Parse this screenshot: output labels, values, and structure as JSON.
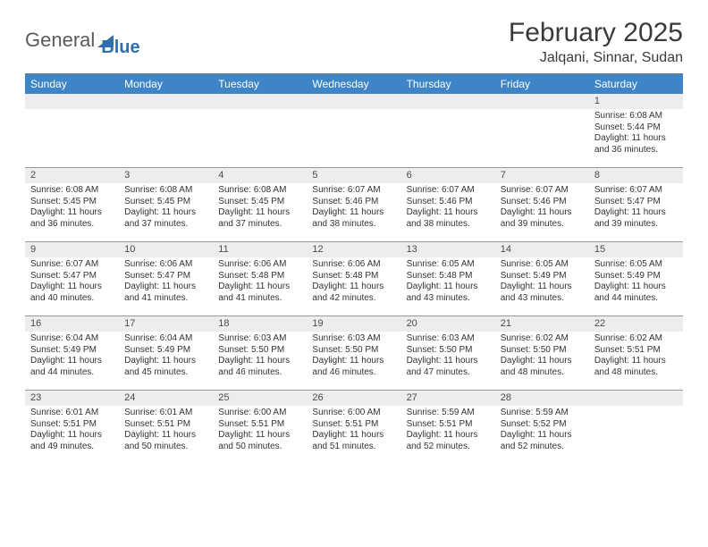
{
  "logo": {
    "word1": "General",
    "word2": "Blue"
  },
  "title": "February 2025",
  "subtitle": "Jalqani, Sinnar, Sudan",
  "header_bg": "#3d85c6",
  "weekdays": [
    "Sunday",
    "Monday",
    "Tuesday",
    "Wednesday",
    "Thursday",
    "Friday",
    "Saturday"
  ],
  "layout": {
    "first_weekday_index": 6,
    "days_in_month": 28,
    "weeks": 5
  },
  "days": {
    "1": {
      "sunrise": "6:08 AM",
      "sunset": "5:44 PM",
      "daylight": "11 hours and 36 minutes."
    },
    "2": {
      "sunrise": "6:08 AM",
      "sunset": "5:45 PM",
      "daylight": "11 hours and 36 minutes."
    },
    "3": {
      "sunrise": "6:08 AM",
      "sunset": "5:45 PM",
      "daylight": "11 hours and 37 minutes."
    },
    "4": {
      "sunrise": "6:08 AM",
      "sunset": "5:45 PM",
      "daylight": "11 hours and 37 minutes."
    },
    "5": {
      "sunrise": "6:07 AM",
      "sunset": "5:46 PM",
      "daylight": "11 hours and 38 minutes."
    },
    "6": {
      "sunrise": "6:07 AM",
      "sunset": "5:46 PM",
      "daylight": "11 hours and 38 minutes."
    },
    "7": {
      "sunrise": "6:07 AM",
      "sunset": "5:46 PM",
      "daylight": "11 hours and 39 minutes."
    },
    "8": {
      "sunrise": "6:07 AM",
      "sunset": "5:47 PM",
      "daylight": "11 hours and 39 minutes."
    },
    "9": {
      "sunrise": "6:07 AM",
      "sunset": "5:47 PM",
      "daylight": "11 hours and 40 minutes."
    },
    "10": {
      "sunrise": "6:06 AM",
      "sunset": "5:47 PM",
      "daylight": "11 hours and 41 minutes."
    },
    "11": {
      "sunrise": "6:06 AM",
      "sunset": "5:48 PM",
      "daylight": "11 hours and 41 minutes."
    },
    "12": {
      "sunrise": "6:06 AM",
      "sunset": "5:48 PM",
      "daylight": "11 hours and 42 minutes."
    },
    "13": {
      "sunrise": "6:05 AM",
      "sunset": "5:48 PM",
      "daylight": "11 hours and 43 minutes."
    },
    "14": {
      "sunrise": "6:05 AM",
      "sunset": "5:49 PM",
      "daylight": "11 hours and 43 minutes."
    },
    "15": {
      "sunrise": "6:05 AM",
      "sunset": "5:49 PM",
      "daylight": "11 hours and 44 minutes."
    },
    "16": {
      "sunrise": "6:04 AM",
      "sunset": "5:49 PM",
      "daylight": "11 hours and 44 minutes."
    },
    "17": {
      "sunrise": "6:04 AM",
      "sunset": "5:49 PM",
      "daylight": "11 hours and 45 minutes."
    },
    "18": {
      "sunrise": "6:03 AM",
      "sunset": "5:50 PM",
      "daylight": "11 hours and 46 minutes."
    },
    "19": {
      "sunrise": "6:03 AM",
      "sunset": "5:50 PM",
      "daylight": "11 hours and 46 minutes."
    },
    "20": {
      "sunrise": "6:03 AM",
      "sunset": "5:50 PM",
      "daylight": "11 hours and 47 minutes."
    },
    "21": {
      "sunrise": "6:02 AM",
      "sunset": "5:50 PM",
      "daylight": "11 hours and 48 minutes."
    },
    "22": {
      "sunrise": "6:02 AM",
      "sunset": "5:51 PM",
      "daylight": "11 hours and 48 minutes."
    },
    "23": {
      "sunrise": "6:01 AM",
      "sunset": "5:51 PM",
      "daylight": "11 hours and 49 minutes."
    },
    "24": {
      "sunrise": "6:01 AM",
      "sunset": "5:51 PM",
      "daylight": "11 hours and 50 minutes."
    },
    "25": {
      "sunrise": "6:00 AM",
      "sunset": "5:51 PM",
      "daylight": "11 hours and 50 minutes."
    },
    "26": {
      "sunrise": "6:00 AM",
      "sunset": "5:51 PM",
      "daylight": "11 hours and 51 minutes."
    },
    "27": {
      "sunrise": "5:59 AM",
      "sunset": "5:51 PM",
      "daylight": "11 hours and 52 minutes."
    },
    "28": {
      "sunrise": "5:59 AM",
      "sunset": "5:52 PM",
      "daylight": "11 hours and 52 minutes."
    }
  },
  "labels": {
    "sunrise": "Sunrise:",
    "sunset": "Sunset:",
    "daylight": "Daylight:"
  }
}
